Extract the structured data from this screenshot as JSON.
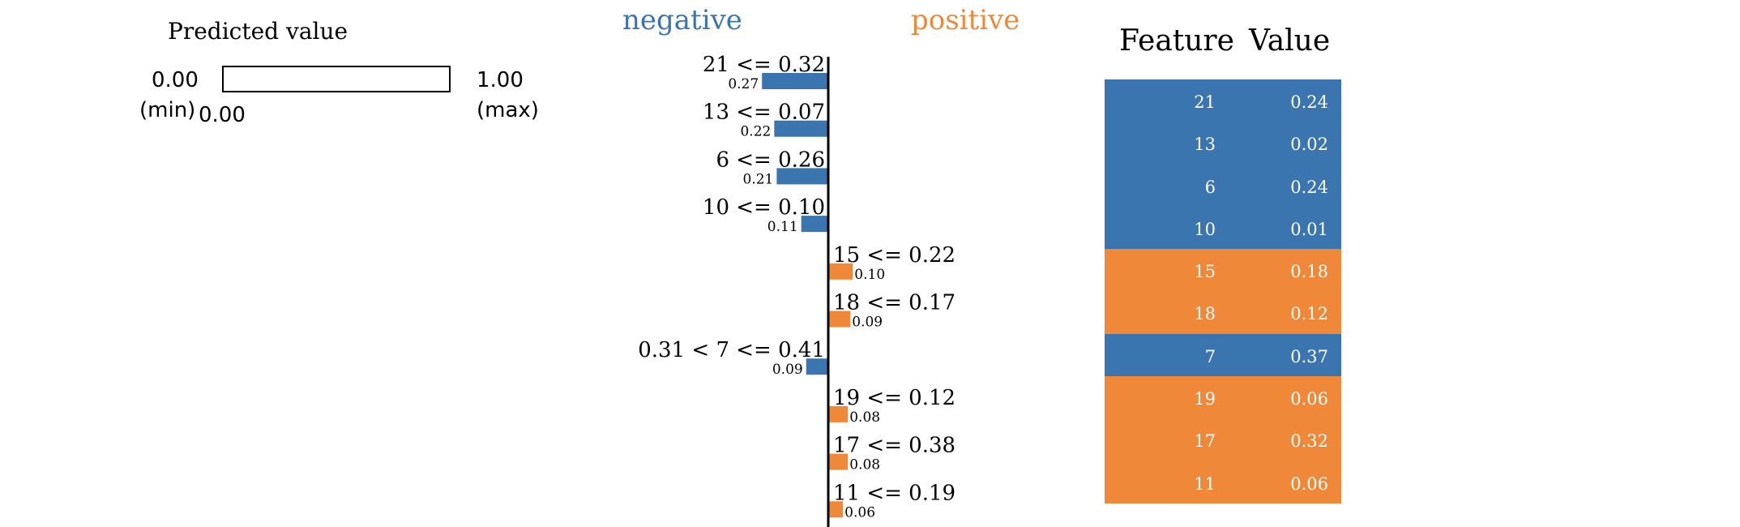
{
  "predicted": {
    "title": "Predicted value",
    "min_value": "0.00",
    "min_label": "(min)",
    "max_value": "1.00",
    "max_label": "(max)",
    "value_label": "0.00",
    "value": 0.0
  },
  "colors": {
    "negative": "#3a75af",
    "positive": "#f0883a"
  },
  "chart_data": {
    "type": "bar",
    "negative_label": "negative",
    "positive_label": "positive",
    "orientation": "horizontal-diverging",
    "bars": [
      {
        "label": "21 <= 0.32",
        "value": -0.27,
        "value_label": "0.27"
      },
      {
        "label": "13 <= 0.07",
        "value": -0.22,
        "value_label": "0.22"
      },
      {
        "label": "6 <= 0.26",
        "value": -0.21,
        "value_label": "0.21"
      },
      {
        "label": "10 <= 0.10",
        "value": -0.11,
        "value_label": "0.11"
      },
      {
        "label": "15 <= 0.22",
        "value": 0.1,
        "value_label": "0.10"
      },
      {
        "label": "18 <= 0.17",
        "value": 0.09,
        "value_label": "0.09"
      },
      {
        "label": "0.31 < 7 <= 0.41",
        "value": -0.09,
        "value_label": "0.09"
      },
      {
        "label": "19 <= 0.12",
        "value": 0.08,
        "value_label": "0.08"
      },
      {
        "label": "17 <= 0.38",
        "value": 0.08,
        "value_label": "0.08"
      },
      {
        "label": "11 <= 0.19",
        "value": 0.06,
        "value_label": "0.06"
      }
    ]
  },
  "table": {
    "headers": [
      "Feature",
      "Value"
    ],
    "rows": [
      {
        "feature": "21",
        "value": "0.24",
        "sign": "negative"
      },
      {
        "feature": "13",
        "value": "0.02",
        "sign": "negative"
      },
      {
        "feature": "6",
        "value": "0.24",
        "sign": "negative"
      },
      {
        "feature": "10",
        "value": "0.01",
        "sign": "negative"
      },
      {
        "feature": "15",
        "value": "0.18",
        "sign": "positive"
      },
      {
        "feature": "18",
        "value": "0.12",
        "sign": "positive"
      },
      {
        "feature": "7",
        "value": "0.37",
        "sign": "negative"
      },
      {
        "feature": "19",
        "value": "0.06",
        "sign": "positive"
      },
      {
        "feature": "17",
        "value": "0.32",
        "sign": "positive"
      },
      {
        "feature": "11",
        "value": "0.06",
        "sign": "positive"
      }
    ]
  }
}
